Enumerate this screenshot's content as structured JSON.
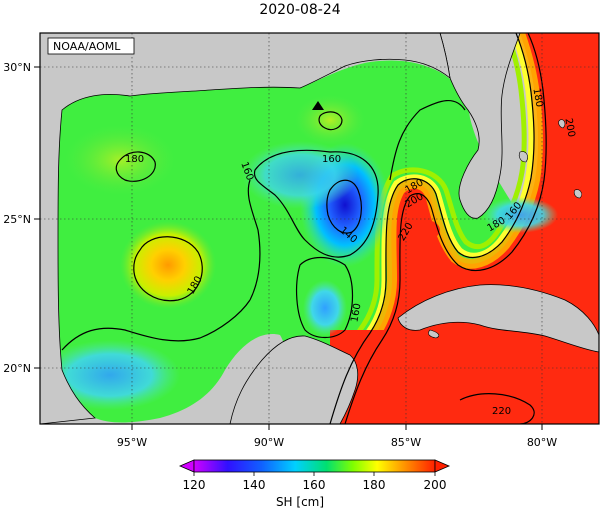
{
  "title": "2020-08-24",
  "credit": "NOAA/AOML",
  "lon_ticks": [
    "95°W",
    "90°W",
    "85°W",
    "80°W"
  ],
  "lat_ticks": [
    "30°N",
    "25°N",
    "20°N"
  ],
  "contour_labels": [
    "180",
    "160",
    "160",
    "140",
    "180",
    "160",
    "180",
    "200",
    "220",
    "180",
    "200",
    "180",
    "160",
    "220"
  ],
  "colorbar": {
    "ticks": [
      "120",
      "140",
      "160",
      "180",
      "200"
    ],
    "label": "SH [cm]",
    "colors": [
      "#d000ff",
      "#1010ff",
      "#00c8ff",
      "#00e080",
      "#80ff00",
      "#ffff00",
      "#ffa000",
      "#ff2000"
    ]
  },
  "colors": {
    "land": "#c8c8c8",
    "coast": "#000000",
    "gulf_green": "#3cf23c",
    "warm_red": "#ff2a10"
  },
  "icons": [
    "station-triangle-icon"
  ]
}
